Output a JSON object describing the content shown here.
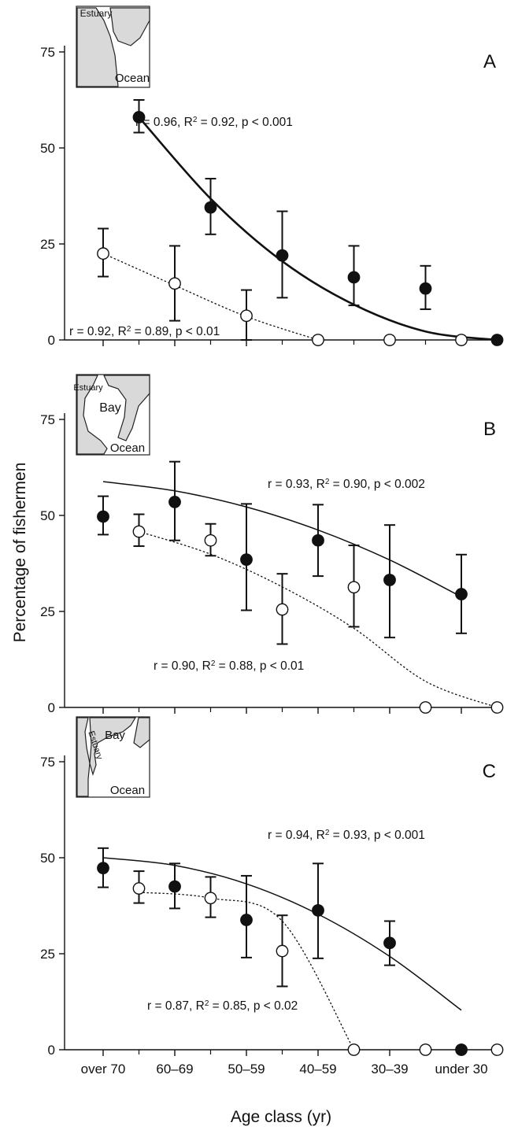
{
  "figure": {
    "ylabel": "Percentage of fishermen",
    "xlabel": "Age class (yr)",
    "categories": [
      "over 70",
      "60–69",
      "50–59",
      "40–59",
      "30–39",
      "under 30"
    ]
  },
  "chart_data": [
    {
      "type": "scatter",
      "panel": "A",
      "map_labels": [
        "Estuary",
        "Ocean"
      ],
      "ylim": [
        0,
        75
      ],
      "yticks": [
        0,
        25,
        50,
        75
      ],
      "xticklabels": [
        "over 70",
        "60–69",
        "50–59",
        "40–59",
        "30–39",
        "under 30"
      ],
      "series": [
        {
          "marker": "filled",
          "x": [
            0.5,
            1.5,
            2.5,
            3.5,
            4.5,
            5.5
          ],
          "values": [
            58,
            34.5,
            22,
            16.3,
            13.4,
            0
          ],
          "err_low": [
            54,
            27.5,
            11,
            9,
            8,
            0
          ],
          "err_high": [
            62.5,
            42,
            33.5,
            24.5,
            19.3,
            0
          ],
          "fit": [
            58,
            36.8,
            20.5,
            9.2,
            2.2,
            0
          ],
          "fit_style": "solid-thick",
          "annotation": "r = 0.96, R² = 0.92, p < 0.001"
        },
        {
          "marker": "open",
          "x": [
            0,
            1,
            2,
            3,
            4,
            5
          ],
          "values": [
            22.5,
            14.7,
            6.3,
            0,
            0,
            0
          ],
          "err_low": [
            16.5,
            5,
            0,
            0,
            0,
            0
          ],
          "err_high": [
            29,
            24.5,
            13,
            0,
            0,
            0
          ],
          "fit": [
            22.5,
            14.2,
            6.1,
            0
          ],
          "fit_style": "dotted",
          "annotation": "r = 0.92, R² = 0.89, p < 0.01"
        }
      ]
    },
    {
      "type": "scatter",
      "panel": "B",
      "map_labels": [
        "Estuary",
        "Bay",
        "Ocean"
      ],
      "ylim": [
        0,
        75
      ],
      "yticks": [
        0,
        25,
        50,
        75
      ],
      "xticklabels": [
        "over 70",
        "60–69",
        "50–59",
        "40–59",
        "30–39",
        "under 30"
      ],
      "series": [
        {
          "marker": "filled",
          "x": [
            0,
            1,
            2,
            3,
            4,
            5
          ],
          "values": [
            49.7,
            53.5,
            38.5,
            43.5,
            33.2,
            29.5
          ],
          "err_low": [
            45,
            43.5,
            25.3,
            34.2,
            18.2,
            19.3
          ],
          "err_high": [
            55,
            64,
            53,
            52.8,
            47.5,
            39.8
          ],
          "fit": [
            58.8,
            56.4,
            52.2,
            46.2,
            38.4,
            28.8
          ],
          "fit_style": "solid-thin",
          "annotation": "r = 0.93, R² = 0.90, p < 0.002"
        },
        {
          "marker": "open",
          "x": [
            0.5,
            1.5,
            2.5,
            3.5,
            4.5,
            5.5
          ],
          "values": [
            45.8,
            43.5,
            25.5,
            31.3,
            0,
            0
          ],
          "err_low": [
            42,
            39.5,
            16.5,
            21,
            0,
            0
          ],
          "err_high": [
            50.3,
            47.8,
            34.8,
            42.2,
            0,
            0
          ],
          "fit": [
            45.8,
            39.9,
            31.4,
            20.6,
            6.8,
            0
          ],
          "fit_style": "dotted",
          "annotation": "r = 0.90, R² = 0.88, p < 0.01"
        }
      ]
    },
    {
      "type": "scatter",
      "panel": "C",
      "map_labels": [
        "Bay",
        "Estuary",
        "Ocean"
      ],
      "ylim": [
        0,
        75
      ],
      "yticks": [
        0,
        25,
        50,
        75
      ],
      "xticklabels": [
        "over 70",
        "60–69",
        "50–59",
        "40–59",
        "30–39",
        "under 30"
      ],
      "series": [
        {
          "marker": "filled",
          "x": [
            0,
            1,
            2,
            3,
            4,
            5
          ],
          "values": [
            47.3,
            42.5,
            33.8,
            36.3,
            27.8,
            0
          ],
          "err_low": [
            42.3,
            36.8,
            24,
            23.8,
            22,
            0
          ],
          "err_high": [
            52.5,
            48.5,
            45.3,
            48.5,
            33.5,
            0
          ],
          "fit": [
            50,
            48,
            43.2,
            35.3,
            24.3,
            10.3
          ],
          "fit_style": "solid-thin",
          "annotation": "r = 0.94, R² = 0.93, p < 0.001"
        },
        {
          "marker": "open",
          "x": [
            0.5,
            1.5,
            2.5,
            3.5,
            4.5,
            5.5
          ],
          "values": [
            42,
            39.5,
            25.7,
            0,
            0,
            0
          ],
          "err_low": [
            38.2,
            34.5,
            16.5,
            0,
            0,
            0
          ],
          "err_high": [
            46.5,
            45,
            35,
            0,
            0,
            0
          ],
          "fit": [
            41,
            39.5,
            33.5,
            0
          ],
          "fit_style": "dotted",
          "annotation": "r = 0.87, R² = 0.85, p < 0.02"
        }
      ]
    }
  ]
}
